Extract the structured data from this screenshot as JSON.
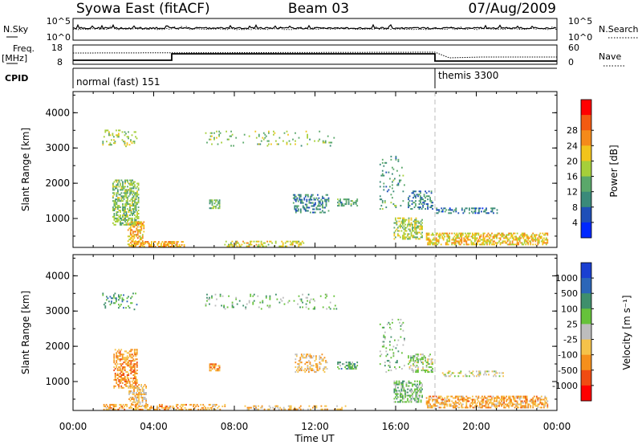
{
  "header": {
    "station": "Syowa East (fitACF)",
    "beam": "Beam 03",
    "date": "07/Aug/2009"
  },
  "nsky_panel": {
    "left_label": "N.Sky",
    "right_label": "N.Search",
    "left_ticks": [
      "10^5",
      "10^0"
    ],
    "right_ticks": [
      "10^5",
      "10^0"
    ]
  },
  "freq_panel": {
    "left_label": "Freq.",
    "left_unit": "[MHz]",
    "right_label": "Nave",
    "left_ticks": [
      "18",
      "8"
    ],
    "right_ticks": [
      "60",
      "0"
    ]
  },
  "cpid_panel": {
    "label": "CPID",
    "segments": [
      {
        "label": "normal (fast) 151",
        "start_hour": 0
      },
      {
        "label": "themis 3300",
        "start_hour": 18
      }
    ]
  },
  "colors": {
    "power": [
      "#0028ff",
      "#1f4fb8",
      "#3a8a7a",
      "#5aa86a",
      "#a6cf3a",
      "#f2c41b",
      "#f58a1a",
      "#f35a12",
      "#ff0000"
    ],
    "velocity": [
      "#1a3fd1",
      "#2b66b8",
      "#3f8f6c",
      "#66c23a",
      "#bdbdbd",
      "#f5c24a",
      "#f58f1c",
      "#f04b12",
      "#ff0000"
    ]
  },
  "chart_data": [
    {
      "type": "heatmap",
      "name": "Power",
      "xlabel": "",
      "ylabel": "Slant Range [km]",
      "xlim": [
        0,
        24
      ],
      "ylim": [
        180,
        4600
      ],
      "yticks": [
        "1000",
        "2000",
        "3000",
        "4000"
      ],
      "colorbar_label": "Power [dB]",
      "colorbar_ticks": [
        "4",
        "8",
        "12",
        "16",
        "20",
        "24",
        "28"
      ],
      "blobs": [
        {
          "x": 2.6,
          "y": 1450,
          "w": 1.3,
          "h": 1300,
          "v": 3.5,
          "d": 0.55
        },
        {
          "x": 3.1,
          "y": 550,
          "w": 0.8,
          "h": 700,
          "v": 5.5,
          "d": 0.5
        },
        {
          "x": 4.2,
          "y": 260,
          "w": 2.6,
          "h": 160,
          "v": 5.5,
          "d": 0.6
        },
        {
          "x": 9.5,
          "y": 260,
          "w": 4.0,
          "h": 140,
          "v": 4.5,
          "d": 0.35
        },
        {
          "x": 11.8,
          "y": 1400,
          "w": 1.8,
          "h": 500,
          "v": 2.0,
          "d": 0.4
        },
        {
          "x": 13.6,
          "y": 1450,
          "w": 1.0,
          "h": 220,
          "v": 2.5,
          "d": 0.45
        },
        {
          "x": 7.0,
          "y": 1400,
          "w": 0.5,
          "h": 260,
          "v": 3.0,
          "d": 0.5
        },
        {
          "x": 16.6,
          "y": 700,
          "w": 1.4,
          "h": 600,
          "v": 4.0,
          "d": 0.5
        },
        {
          "x": 17.2,
          "y": 1500,
          "w": 1.2,
          "h": 500,
          "v": 2.0,
          "d": 0.35
        },
        {
          "x": 19.5,
          "y": 1200,
          "w": 3.0,
          "h": 140,
          "v": 1.5,
          "d": 0.35
        },
        {
          "x": 20.5,
          "y": 400,
          "w": 6.0,
          "h": 320,
          "v": 5.0,
          "d": 0.55
        },
        {
          "x": 2.3,
          "y": 3250,
          "w": 1.7,
          "h": 450,
          "v": 4.0,
          "d": 0.18
        },
        {
          "x": 9.8,
          "y": 3250,
          "w": 6.5,
          "h": 420,
          "v": 3.5,
          "d": 0.08
        },
        {
          "x": 15.8,
          "y": 2000,
          "w": 1.2,
          "h": 1500,
          "v": 2.5,
          "d": 0.1
        }
      ]
    },
    {
      "type": "heatmap",
      "name": "Velocity",
      "xlabel": "Time UT",
      "ylabel": "Slant Range [km]",
      "xlim": [
        0,
        24
      ],
      "ylim": [
        180,
        4600
      ],
      "xticks": [
        "00:00",
        "04:00",
        "08:00",
        "12:00",
        "16:00",
        "20:00",
        "00:00"
      ],
      "yticks": [
        "1000",
        "2000",
        "3000",
        "4000"
      ],
      "colorbar_label": "Velocity [m s⁻¹]",
      "colorbar_ticks": [
        "1000",
        "500",
        "100",
        "25",
        "-25",
        "-100",
        "-500",
        "-1000"
      ],
      "blobs": [
        {
          "x": 2.6,
          "y": 1350,
          "w": 1.2,
          "h": 1100,
          "v": 5.8,
          "d": 0.55
        },
        {
          "x": 3.2,
          "y": 600,
          "w": 0.9,
          "h": 600,
          "v": 5.0,
          "d": 0.5
        },
        {
          "x": 4.5,
          "y": 260,
          "w": 6.0,
          "h": 150,
          "v": 5.5,
          "d": 0.45
        },
        {
          "x": 11.0,
          "y": 250,
          "w": 5.0,
          "h": 120,
          "v": 5.0,
          "d": 0.3
        },
        {
          "x": 11.8,
          "y": 1500,
          "w": 1.6,
          "h": 500,
          "v": 5.0,
          "d": 0.35
        },
        {
          "x": 13.6,
          "y": 1450,
          "w": 1.0,
          "h": 220,
          "v": 2.5,
          "d": 0.45
        },
        {
          "x": 7.0,
          "y": 1400,
          "w": 0.5,
          "h": 220,
          "v": 6.0,
          "d": 0.5
        },
        {
          "x": 16.6,
          "y": 700,
          "w": 1.4,
          "h": 600,
          "v": 3.0,
          "d": 0.5
        },
        {
          "x": 17.2,
          "y": 1500,
          "w": 1.2,
          "h": 500,
          "v": 3.5,
          "d": 0.35
        },
        {
          "x": 19.8,
          "y": 1200,
          "w": 3.0,
          "h": 140,
          "v": 4.0,
          "d": 0.3
        },
        {
          "x": 20.5,
          "y": 400,
          "w": 6.0,
          "h": 320,
          "v": 5.5,
          "d": 0.55
        },
        {
          "x": 2.3,
          "y": 3250,
          "w": 1.7,
          "h": 450,
          "v": 2.0,
          "d": 0.18
        },
        {
          "x": 9.8,
          "y": 3250,
          "w": 6.5,
          "h": 420,
          "v": 3.0,
          "d": 0.08
        },
        {
          "x": 15.8,
          "y": 2000,
          "w": 1.2,
          "h": 1500,
          "v": 3.0,
          "d": 0.1
        }
      ]
    }
  ]
}
